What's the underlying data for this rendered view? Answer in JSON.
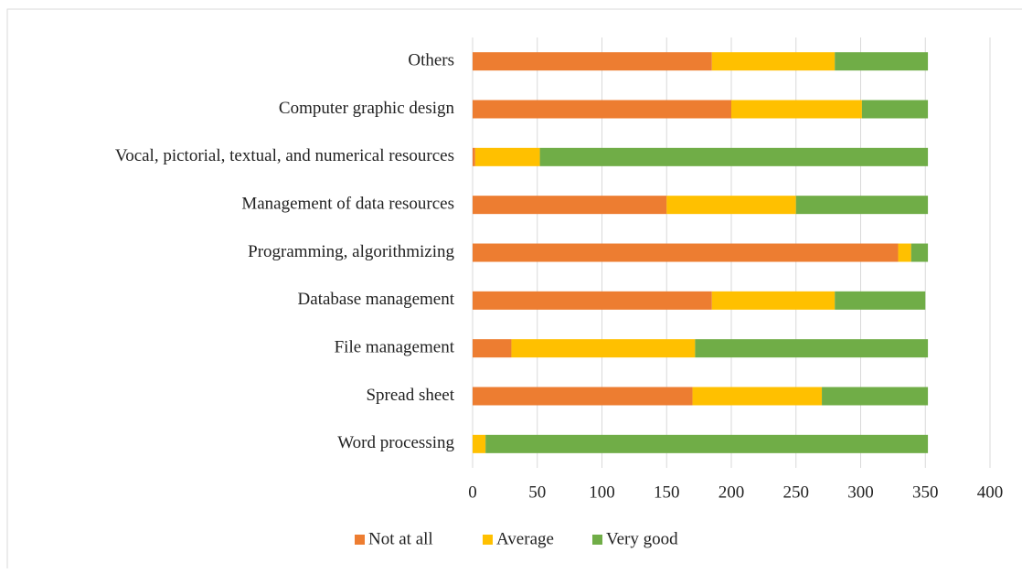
{
  "chart_data": {
    "type": "bar",
    "orientation": "horizontal",
    "stacked": true,
    "categories": [
      "Others",
      "Computer graphic design",
      "Vocal, pictorial, textual, and numerical resources",
      "Management of data resources",
      "Programming, algorithmizing",
      "Database management",
      "File management",
      "Spread sheet",
      "Word processing"
    ],
    "series": [
      {
        "name": "Not at all",
        "color": "#ed7d31",
        "values": [
          185,
          200,
          2,
          150,
          329,
          185,
          30,
          170,
          0
        ]
      },
      {
        "name": "Average",
        "color": "#ffc000",
        "values": [
          95,
          101,
          50,
          100,
          10,
          95,
          142,
          100,
          10
        ]
      },
      {
        "name": "Very good",
        "color": "#70ad47",
        "values": [
          72,
          51,
          300,
          102,
          13,
          70,
          180,
          82,
          342
        ]
      }
    ],
    "xlim": [
      0,
      400
    ],
    "xticks": [
      0,
      50,
      100,
      150,
      200,
      250,
      300,
      350,
      400
    ],
    "grid": true,
    "legend": "bottom"
  }
}
